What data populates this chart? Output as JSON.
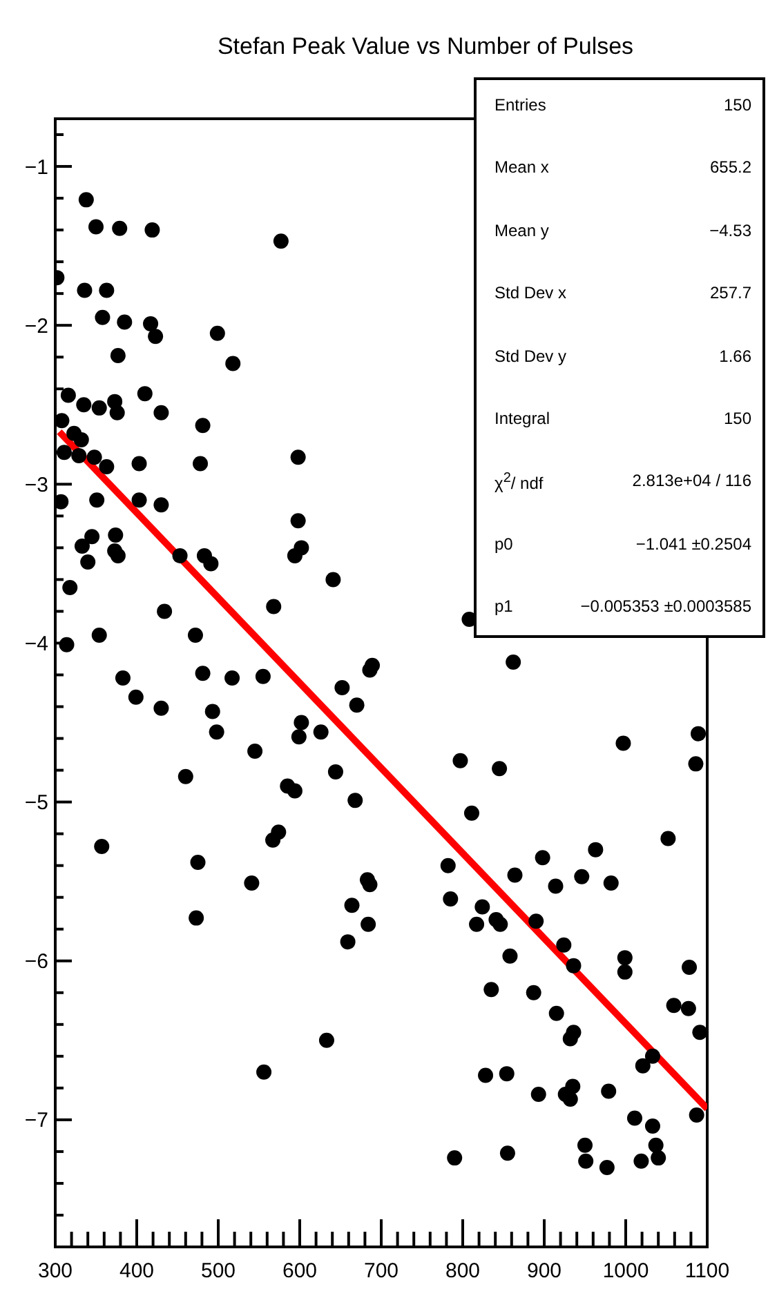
{
  "chart_data": {
    "type": "scatter",
    "title": "Stefan Peak Value vs Number of Pulses",
    "annotations": [
      "Entries",
      "150",
      "Mean x",
      "655.2",
      "Mean y",
      "−4.53",
      "Std Dev x",
      "257.7",
      "Std Dev y",
      "1.66",
      "Integral",
      "150",
      "χ$^{2}$/ ndf",
      "2.813e+04 / 116",
      "p0",
      "−1.041 ±0.2504",
      "p1",
      "−0.005353 ±0.0003585"
    ],
    "xlim": [
      300,
      1100
    ],
    "ylim": [
      -7.8,
      -0.7
    ],
    "xticks": [
      300,
      {
        "value": 320,
        "label": null
      },
      {
        "value": 340,
        "label": null
      },
      {
        "value": 360,
        "label": null
      },
      {
        "value": 380,
        "label": null
      },
      400,
      {
        "value": 420,
        "label": null
      },
      {
        "value": 440,
        "label": null
      },
      {
        "value": 460,
        "label": null
      },
      {
        "value": 480,
        "label": null
      },
      500,
      {
        "value": 520,
        "label": null
      },
      {
        "value": 540,
        "label": null
      },
      {
        "value": 560,
        "label": null
      },
      {
        "value": 580,
        "label": null
      },
      600,
      {
        "value": 620,
        "label": null
      },
      {
        "value": 640,
        "label": null
      },
      {
        "value": 660,
        "label": null
      },
      {
        "value": 680,
        "label": null
      },
      700,
      {
        "value": 720,
        "label": null
      },
      {
        "value": 740,
        "label": null
      },
      {
        "value": 760,
        "label": null
      },
      {
        "value": 780,
        "label": null
      },
      800,
      {
        "value": 820,
        "label": null
      },
      {
        "value": 840,
        "label": null
      },
      {
        "value": 860,
        "label": null
      },
      {
        "value": 880,
        "label": null
      },
      900,
      {
        "value": 920,
        "label": null
      },
      {
        "value": 940,
        "label": null
      },
      {
        "value": 960,
        "label": null
      },
      {
        "value": 980,
        "label": null
      },
      1000,
      {
        "value": 1020,
        "label": null
      },
      {
        "value": 1040,
        "label": null
      },
      {
        "value": 1060,
        "label": null
      },
      {
        "value": 1080,
        "label": null
      },
      1100
    ],
    "yticks": [
      {
        "value": -7.8,
        "label": null
      },
      {
        "value": -7.6,
        "label": null
      },
      {
        "value": -7.4,
        "label": null
      },
      {
        "value": -7.2,
        "label": null
      },
      {
        "value": -7,
        "label": "−7"
      },
      {
        "value": -6.8,
        "label": null
      },
      {
        "value": -6.6,
        "label": null
      },
      {
        "value": -6.4,
        "label": null
      },
      {
        "value": -6.2,
        "label": null
      },
      {
        "value": -6,
        "label": "−6"
      },
      {
        "value": -5.8,
        "label": null
      },
      {
        "value": -5.6,
        "label": null
      },
      {
        "value": -5.4,
        "label": null
      },
      {
        "value": -5.2,
        "label": null
      },
      {
        "value": -5,
        "label": "−5"
      },
      {
        "value": -4.8,
        "label": null
      },
      {
        "value": -4.6,
        "label": null
      },
      {
        "value": -4.4,
        "label": null
      },
      {
        "value": -4.2,
        "label": null
      },
      {
        "value": -4,
        "label": "−4"
      },
      {
        "value": -3.8,
        "label": null
      },
      {
        "value": -3.6,
        "label": null
      },
      {
        "value": -3.4,
        "label": null
      },
      {
        "value": -3.2,
        "label": null
      },
      {
        "value": -3,
        "label": "−3"
      },
      {
        "value": -2.8,
        "label": null
      },
      {
        "value": -2.6,
        "label": null
      },
      {
        "value": -2.4,
        "label": null
      },
      {
        "value": -2.2,
        "label": null
      },
      {
        "value": -2,
        "label": "−2"
      },
      {
        "value": -1.8,
        "label": null
      },
      {
        "value": -1.6,
        "label": null
      },
      {
        "value": -1.4,
        "label": null
      },
      {
        "value": -1.2,
        "label": null
      },
      {
        "value": -1,
        "label": "−1"
      },
      {
        "value": -0.8,
        "label": null
      }
    ],
    "series": [
      {
        "marker": "circle",
        "color": "#000000",
        "x": [
          338,
          350,
          379,
          419,
          577,
          302,
          336,
          363,
          358,
          385,
          417,
          423,
          499,
          518,
          377,
          316,
          335,
          354,
          373,
          376,
          410,
          430,
          481,
          308,
          323,
          332,
          311,
          329,
          348,
          363,
          403,
          478,
          307,
          351,
          403,
          430,
          345,
          333,
          340,
          374,
          373,
          377,
          453,
          483,
          491,
          318,
          434,
          568,
          354,
          472,
          314,
          383,
          481,
          517,
          555,
          598,
          598,
          602,
          594,
          641,
          808,
          689,
          686,
          652,
          862,
          399,
          430,
          493,
          498,
          545,
          460,
          574,
          567,
          357,
          475,
          541,
          473,
          556,
          670,
          602,
          599,
          626,
          644,
          585,
          594,
          668,
          797,
          845,
          811,
          782,
          785,
          824,
          817,
          841,
          846,
          858,
          835,
          683,
          686,
          664,
          684,
          659,
          633,
          828,
          854,
          790,
          855,
          997,
          1089,
          1086,
          1052,
          963,
          898,
          946,
          982,
          914,
          864,
          890,
          924,
          936,
          999,
          999,
          1078,
          887,
          915,
          1059,
          1077,
          1091,
          936,
          932,
          1021,
          1033,
          893,
          926,
          935,
          932,
          979,
          1011,
          1033,
          1087,
          1037,
          1040,
          1019,
          950,
          951,
          977
        ],
        "values": [
          -1.21,
          -1.38,
          -1.39,
          -1.4,
          -1.47,
          -1.7,
          -1.78,
          -1.78,
          -1.95,
          -1.98,
          -1.99,
          -2.07,
          -2.05,
          -2.24,
          -2.19,
          -2.44,
          -2.5,
          -2.52,
          -2.48,
          -2.55,
          -2.43,
          -2.55,
          -2.63,
          -2.6,
          -2.68,
          -2.72,
          -2.8,
          -2.82,
          -2.83,
          -2.89,
          -2.87,
          -2.87,
          -3.11,
          -3.1,
          -3.1,
          -3.13,
          -3.33,
          -3.39,
          -3.49,
          -3.32,
          -3.42,
          -3.45,
          -3.45,
          -3.45,
          -3.5,
          -3.65,
          -3.8,
          -3.77,
          -3.95,
          -3.95,
          -4.01,
          -4.22,
          -4.19,
          -4.22,
          -4.21,
          -2.83,
          -3.23,
          -3.4,
          -3.45,
          -3.6,
          -3.85,
          -4.14,
          -4.17,
          -4.28,
          -4.12,
          -4.34,
          -4.41,
          -4.43,
          -4.56,
          -4.68,
          -4.84,
          -5.19,
          -5.24,
          -5.28,
          -5.38,
          -5.51,
          -5.73,
          -6.7,
          -4.39,
          -4.5,
          -4.59,
          -4.56,
          -4.81,
          -4.9,
          -4.93,
          -4.99,
          -4.74,
          -4.79,
          -5.07,
          -5.4,
          -5.61,
          -5.66,
          -5.77,
          -5.74,
          -5.77,
          -5.97,
          -6.18,
          -5.49,
          -5.52,
          -5.65,
          -5.77,
          -5.88,
          -6.5,
          -6.72,
          -6.71,
          -7.24,
          -7.21,
          -4.63,
          -4.57,
          -4.76,
          -5.23,
          -5.3,
          -5.35,
          -5.47,
          -5.51,
          -5.53,
          -5.46,
          -5.75,
          -5.9,
          -6.03,
          -5.98,
          -6.07,
          -6.04,
          -6.2,
          -6.33,
          -6.28,
          -6.3,
          -6.45,
          -6.45,
          -6.49,
          -6.66,
          -6.6,
          -6.84,
          -6.84,
          -6.79,
          -6.87,
          -6.82,
          -6.99,
          -7.04,
          -6.97,
          -7.16,
          -7.24,
          -7.26,
          -7.16,
          -7.26,
          -7.3
        ]
      },
      {
        "type": "line",
        "color": "#ff0000",
        "x": [
          305,
          1100
        ],
        "values": [
          -2.67,
          -6.93
        ]
      }
    ]
  }
}
